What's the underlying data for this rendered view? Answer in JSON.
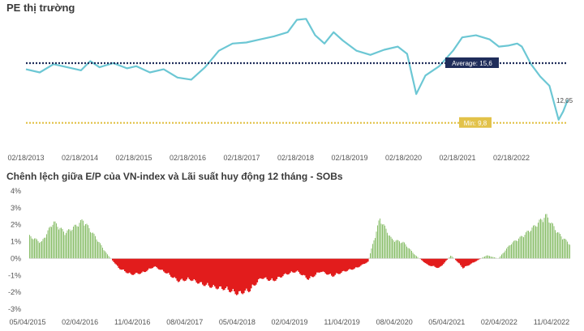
{
  "chart_data": [
    {
      "type": "line",
      "title": "PE thị trường",
      "x_tick_labels": [
        "02/18/2013",
        "02/18/2014",
        "02/18/2015",
        "02/18/2016",
        "02/18/2017",
        "02/18/2018",
        "02/18/2019",
        "02/18/2020",
        "02/18/2021",
        "02/18/2022"
      ],
      "ylim": [
        9.0,
        20.0
      ],
      "series": [
        {
          "color": "#6cc7d4",
          "x": [
            "2013-02",
            "2013-05",
            "2013-08",
            "2013-11",
            "2014-02",
            "2014-04",
            "2014-06",
            "2014-09",
            "2014-12",
            "2015-02",
            "2015-05",
            "2015-08",
            "2015-11",
            "2016-02",
            "2016-05",
            "2016-08",
            "2016-11",
            "2017-02",
            "2017-05",
            "2017-08",
            "2017-11",
            "2018-01",
            "2018-03",
            "2018-05",
            "2018-07",
            "2018-09",
            "2018-11",
            "2019-02",
            "2019-05",
            "2019-08",
            "2019-11",
            "2020-01",
            "2020-03",
            "2020-05",
            "2020-08",
            "2020-11",
            "2021-01",
            "2021-04",
            "2021-07",
            "2021-09",
            "2021-11",
            "2022-01",
            "2022-02",
            "2022-04",
            "2022-06",
            "2022-08",
            "2022-10",
            "2022-11",
            "2022-12"
          ],
          "values": [
            15.0,
            14.7,
            15.5,
            15.2,
            14.9,
            15.8,
            15.2,
            15.6,
            15.1,
            15.3,
            14.7,
            15.0,
            14.2,
            14.0,
            15.2,
            16.8,
            17.5,
            17.6,
            17.9,
            18.2,
            18.6,
            19.8,
            19.9,
            18.3,
            17.5,
            18.6,
            17.8,
            16.8,
            16.4,
            16.9,
            17.2,
            16.5,
            12.6,
            14.4,
            15.3,
            16.8,
            18.1,
            18.3,
            17.9,
            17.2,
            17.3,
            17.5,
            17.2,
            15.5,
            14.3,
            13.4,
            10.1,
            10.9,
            12.05
          ]
        }
      ],
      "reference_lines": [
        {
          "label": "Average: 15,6",
          "value": 15.6,
          "color": "#1f2d5a"
        },
        {
          "label": "Min: 9,8",
          "value": 9.8,
          "color": "#e2c24a"
        }
      ],
      "end_label": "12,05"
    },
    {
      "type": "area",
      "title": "Chênh lệch giữa E/P của VN-index và Lãi suất huy động 12 tháng - SOBs",
      "x_tick_labels": [
        "05/04/2015",
        "02/04/2016",
        "11/04/2016",
        "08/04/2017",
        "05/04/2018",
        "02/04/2019",
        "11/04/2019",
        "08/04/2020",
        "05/04/2021",
        "02/04/2022",
        "11/04/2022"
      ],
      "y_tick_labels": [
        "4%",
        "3%",
        "2%",
        "1%",
        "0%",
        "-1%",
        "-2%",
        "-3%"
      ],
      "ylim": [
        -3,
        4
      ],
      "positive_color": "#8bbf6c",
      "negative_color": "#e21c1c",
      "series": [
        {
          "x": [
            "2015-05",
            "2015-07",
            "2015-09",
            "2015-11",
            "2016-01",
            "2016-02",
            "2016-04",
            "2016-06",
            "2016-08",
            "2016-10",
            "2016-12",
            "2017-02",
            "2017-04",
            "2017-06",
            "2017-08",
            "2017-10",
            "2017-12",
            "2018-02",
            "2018-04",
            "2018-06",
            "2018-08",
            "2018-10",
            "2018-12",
            "2019-02",
            "2019-04",
            "2019-06",
            "2019-08",
            "2019-10",
            "2019-12",
            "2020-02",
            "2020-04",
            "2020-06",
            "2020-08",
            "2020-10",
            "2020-12",
            "2021-02",
            "2021-04",
            "2021-06",
            "2021-08",
            "2021-10",
            "2021-12",
            "2022-02",
            "2022-04",
            "2022-06",
            "2022-08",
            "2022-10",
            "2022-12"
          ],
          "values": [
            1.4,
            1.0,
            2.3,
            1.6,
            2.1,
            2.4,
            1.4,
            0.3,
            -0.6,
            -1.0,
            -0.9,
            -0.5,
            -0.9,
            -1.4,
            -1.3,
            -1.6,
            -1.8,
            -1.9,
            -2.2,
            -2.0,
            -1.2,
            -1.4,
            -1.0,
            -0.8,
            -1.3,
            -0.8,
            -1.1,
            -0.8,
            -0.6,
            -0.2,
            2.5,
            1.2,
            1.0,
            0.2,
            -0.4,
            -0.6,
            0.2,
            -0.6,
            -0.2,
            0.2,
            0.0,
            0.9,
            1.4,
            2.0,
            2.7,
            1.6,
            0.9
          ]
        }
      ]
    }
  ]
}
